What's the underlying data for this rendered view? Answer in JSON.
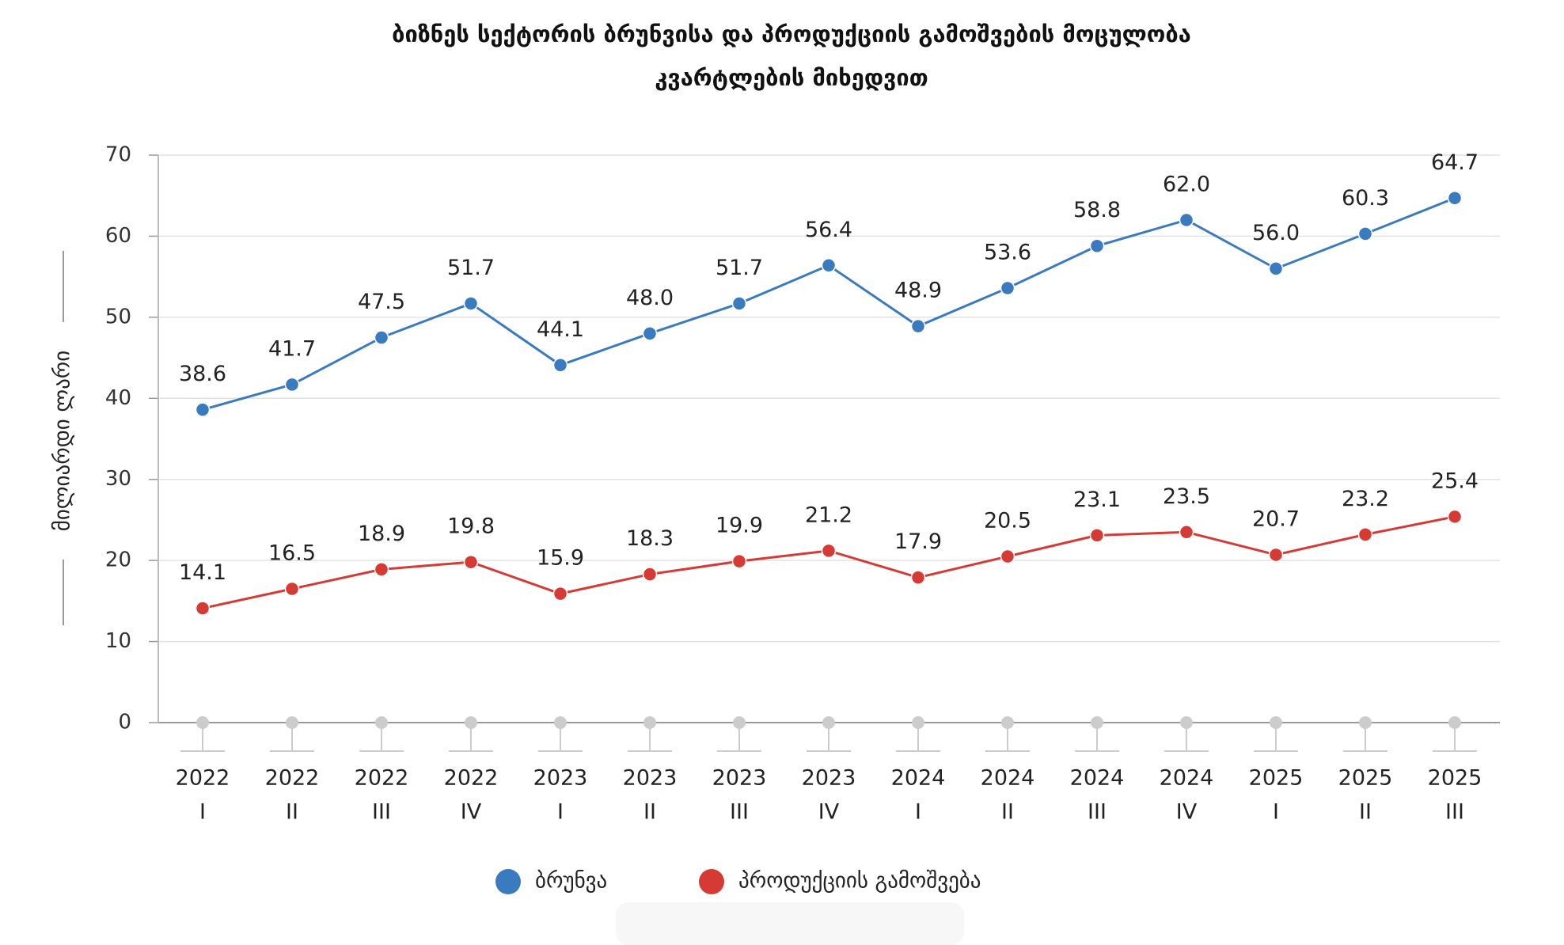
{
  "chart_data": {
    "type": "line",
    "title": [
      "ბიზნეს სექტორის ბრუნვისა და პროდუქციის გამოშვების მოცულობა",
      "კვარტლების მიხედვით"
    ],
    "y_label": "მილიარდი ლარი",
    "categories": [
      [
        "2022",
        "I"
      ],
      [
        "2022",
        "II"
      ],
      [
        "2022",
        "III"
      ],
      [
        "2022",
        "IV"
      ],
      [
        "2023",
        "I"
      ],
      [
        "2023",
        "II"
      ],
      [
        "2023",
        "III"
      ],
      [
        "2023",
        "IV"
      ],
      [
        "2024",
        "I"
      ],
      [
        "2024",
        "II"
      ],
      [
        "2024",
        "III"
      ],
      [
        "2024",
        "IV"
      ],
      [
        "2025",
        "I"
      ],
      [
        "2025",
        "II"
      ],
      [
        "2025",
        "III"
      ]
    ],
    "series": [
      {
        "name": "ბრუნვა",
        "color": "#3a7abf",
        "values": [
          38.6,
          41.7,
          47.5,
          51.7,
          44.1,
          48.0,
          51.7,
          56.4,
          48.9,
          53.6,
          58.8,
          62.0,
          56.0,
          60.3,
          64.7
        ],
        "value_labels": [
          "38.6",
          "41.7",
          "47.5",
          "51.7",
          "44.1",
          "48.0",
          "51.7",
          "56.4",
          "48.9",
          "53.6",
          "58.8",
          "62.0",
          "56.0",
          "60.3",
          "64.7"
        ]
      },
      {
        "name": "პროდუქციის გამოშვება",
        "color": "#d63a35",
        "values": [
          14.1,
          16.5,
          18.9,
          19.8,
          15.9,
          18.3,
          19.9,
          21.2,
          17.9,
          20.5,
          23.1,
          23.5,
          20.7,
          23.2,
          25.4
        ]
      }
    ],
    "ylim": [
      0,
      70
    ],
    "yticks": [
      0,
      10,
      20,
      30,
      40,
      50,
      60,
      70
    ],
    "grid": true,
    "legend": "bottom"
  }
}
